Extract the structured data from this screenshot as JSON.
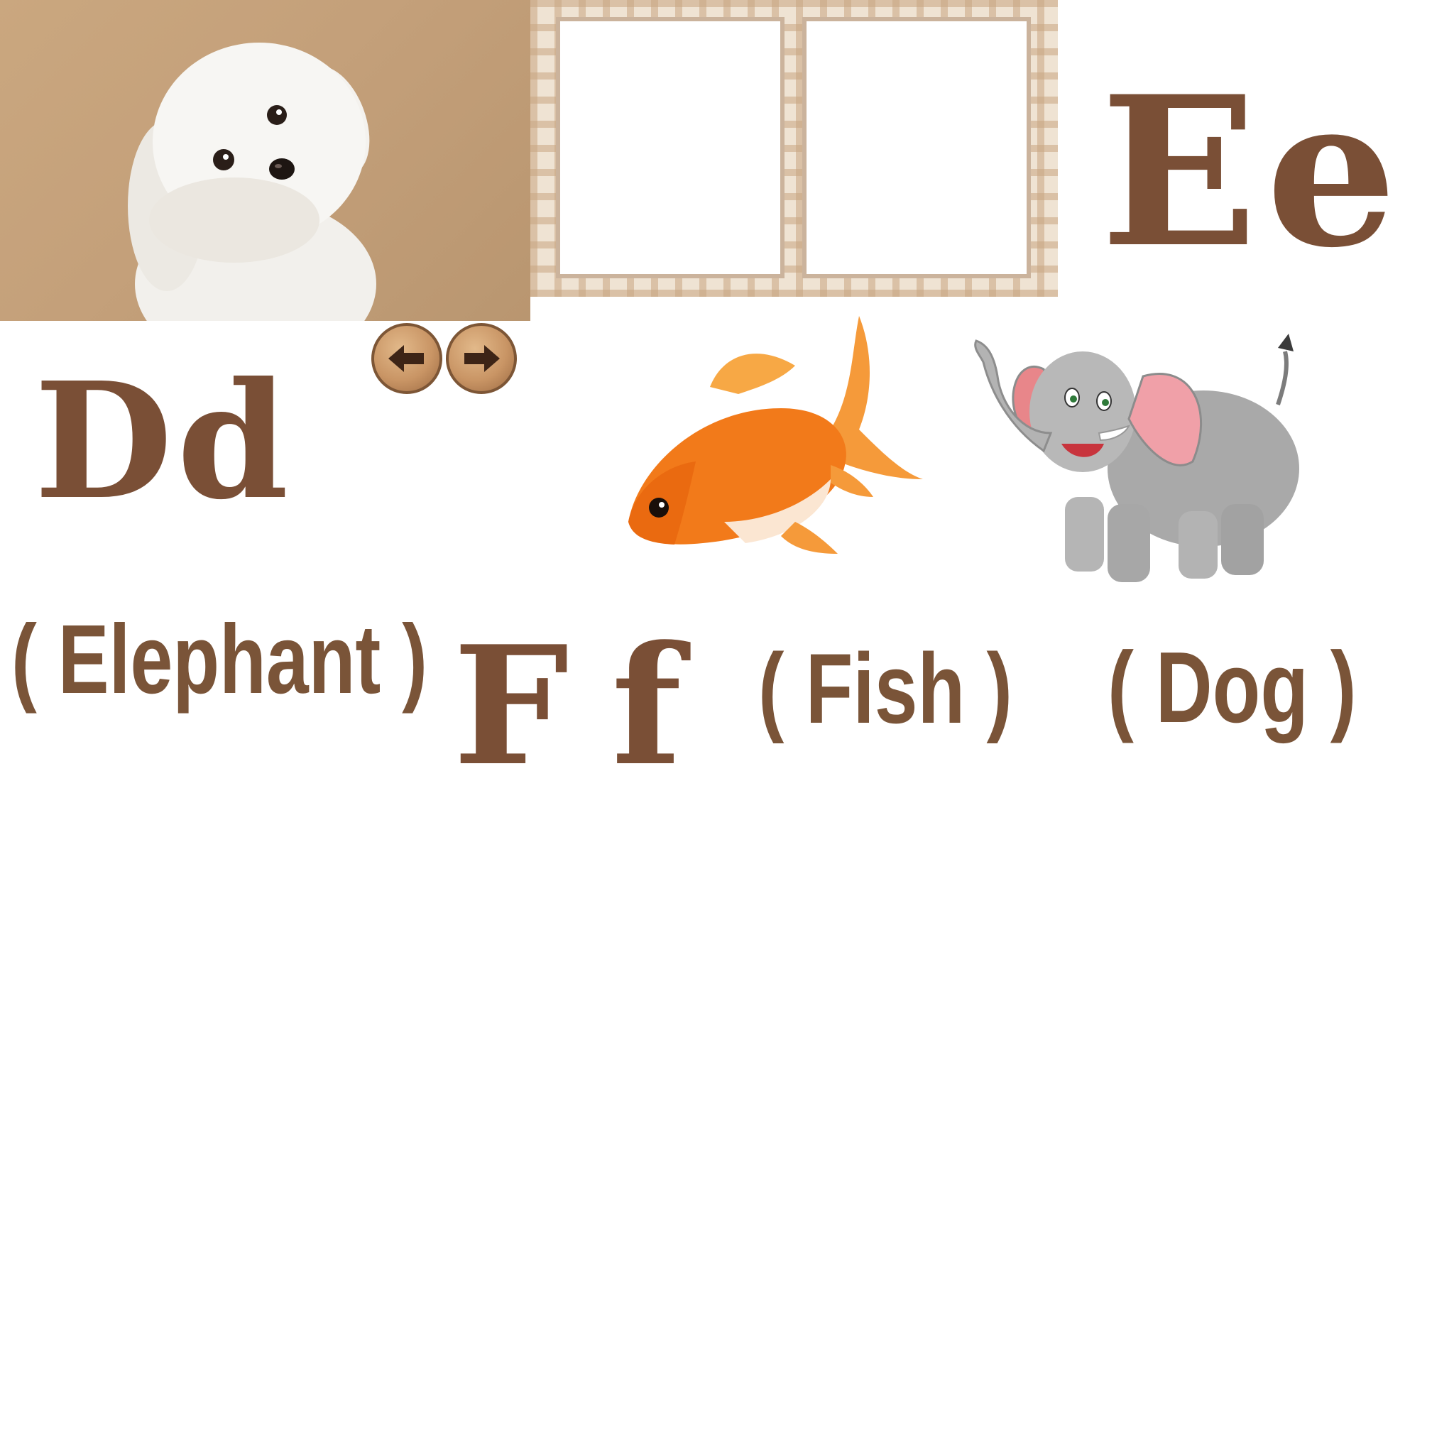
{
  "letters": {
    "d": "Dd",
    "e": "Ee",
    "f": "Ff"
  },
  "words": {
    "elephant": "( Elephant )",
    "fish": "( Fish )",
    "dog": "( Dog )"
  },
  "navigation": {
    "prev_icon": "arrow-left-icon",
    "next_icon": "arrow-right-icon"
  },
  "colors": {
    "letter": "#7a4f36",
    "word": "#7a5438",
    "board": "#efe3d3",
    "dog_background": "#c4a07a"
  }
}
